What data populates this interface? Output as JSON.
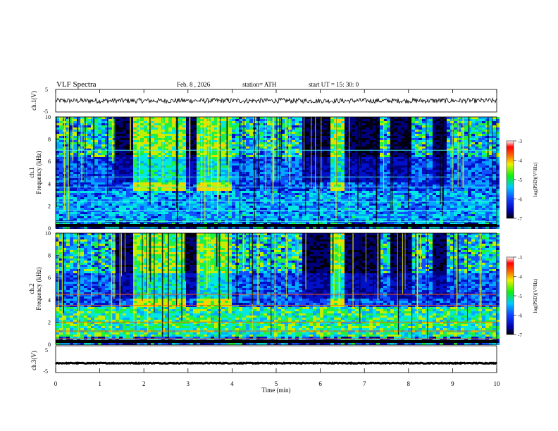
{
  "header": {
    "title": "VLF  Spectra",
    "date": "Feb. 8  , 2026",
    "station": "station= ATH",
    "start": "start  UT  =    15: 30: 0"
  },
  "chart_data": [
    {
      "type": "line",
      "name": "ch1-waveform",
      "ylabel": "ch.1(V)",
      "ylim": [
        -5,
        5
      ],
      "yticks": [
        "5",
        "-5"
      ],
      "mean": 0,
      "amplitude": 1.1,
      "xlim": [
        0,
        10
      ]
    },
    {
      "type": "heatmap",
      "name": "ch1-spectrogram",
      "ylabel_line1": "ch.1",
      "ylabel_line2": "Frequency  (kHz)",
      "ylim": [
        0,
        10
      ],
      "yticks": [
        "0",
        "2",
        "4",
        "6",
        "8",
        "10"
      ],
      "colorbar": {
        "label": "log(PSD)(V²/Hz)",
        "range": [
          -7,
          -3
        ],
        "ticks": [
          "-3",
          "-4",
          "-5",
          "-6",
          "-7"
        ]
      },
      "quiet_intervals_min": [
        [
          1.33,
          1.73
        ],
        [
          2.93,
          3.13
        ],
        [
          5.53,
          6.23
        ],
        [
          6.53,
          7.33
        ],
        [
          7.53,
          8.03
        ],
        [
          8.53,
          8.83
        ]
      ],
      "enhanced_intervals_min": [
        [
          1.73,
          2.93
        ],
        [
          3.13,
          3.93
        ],
        [
          6.23,
          6.53
        ]
      ]
    },
    {
      "type": "heatmap",
      "name": "ch2-spectrogram",
      "ylabel_line1": "ch.2",
      "ylabel_line2": "Frequency  (kHz)",
      "ylim": [
        0,
        10
      ],
      "yticks": [
        "0",
        "2",
        "4",
        "6",
        "8",
        "10"
      ],
      "colorbar": {
        "label": "log(PSD)(V²/Hz)",
        "range": [
          -7,
          -3
        ],
        "ticks": [
          "-3",
          "-4",
          "-5",
          "-6",
          "-7"
        ]
      },
      "quiet_intervals_min": [
        [
          1.33,
          1.73
        ],
        [
          2.93,
          3.13
        ],
        [
          5.53,
          6.23
        ],
        [
          6.53,
          7.33
        ],
        [
          7.53,
          8.03
        ],
        [
          8.53,
          8.83
        ]
      ],
      "enhanced_intervals_min": [
        [
          1.73,
          2.93
        ],
        [
          3.13,
          3.93
        ],
        [
          6.23,
          6.53
        ]
      ]
    },
    {
      "type": "line",
      "name": "ch3-waveform",
      "ylabel": "ch.3(V)",
      "ylim": [
        -5,
        5
      ],
      "yticks": [
        "5",
        "-5"
      ],
      "mean": -1.5,
      "amplitude": 0.15,
      "xlim": [
        0,
        10
      ],
      "xlabel": "Time  (min)",
      "xticks": [
        "0",
        "1",
        "2",
        "3",
        "4",
        "5",
        "6",
        "7",
        "8",
        "9",
        "10"
      ]
    }
  ]
}
